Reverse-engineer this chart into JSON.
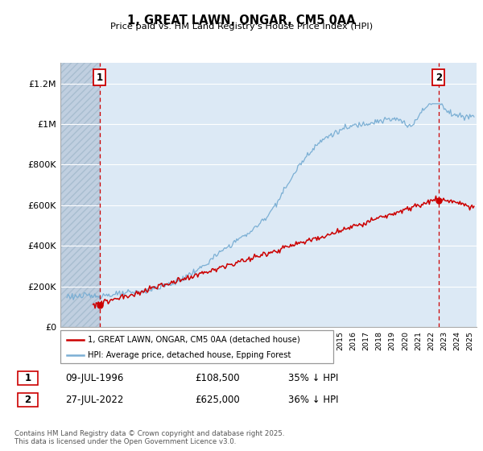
{
  "title": "1, GREAT LAWN, ONGAR, CM5 0AA",
  "subtitle": "Price paid vs. HM Land Registry's House Price Index (HPI)",
  "ylabel_ticks": [
    "£0",
    "£200K",
    "£400K",
    "£600K",
    "£800K",
    "£1M",
    "£1.2M"
  ],
  "ylim": [
    0,
    1300000
  ],
  "xlim_start": 1993.5,
  "xlim_end": 2025.5,
  "sale1_year": 1996.52,
  "sale1_price": 108500,
  "sale2_year": 2022.57,
  "sale2_price": 625000,
  "red_color": "#cc0000",
  "blue_color": "#7bafd4",
  "legend_label_red": "1, GREAT LAWN, ONGAR, CM5 0AA (detached house)",
  "legend_label_blue": "HPI: Average price, detached house, Epping Forest",
  "table_row1": [
    "1",
    "09-JUL-1996",
    "£108,500",
    "35% ↓ HPI"
  ],
  "table_row2": [
    "2",
    "27-JUL-2022",
    "£625,000",
    "36% ↓ HPI"
  ],
  "footnote": "Contains HM Land Registry data © Crown copyright and database right 2025.\nThis data is licensed under the Open Government Licence v3.0.",
  "chart_bg": "#dce9f5",
  "hatch_color": "#c0cfe0"
}
